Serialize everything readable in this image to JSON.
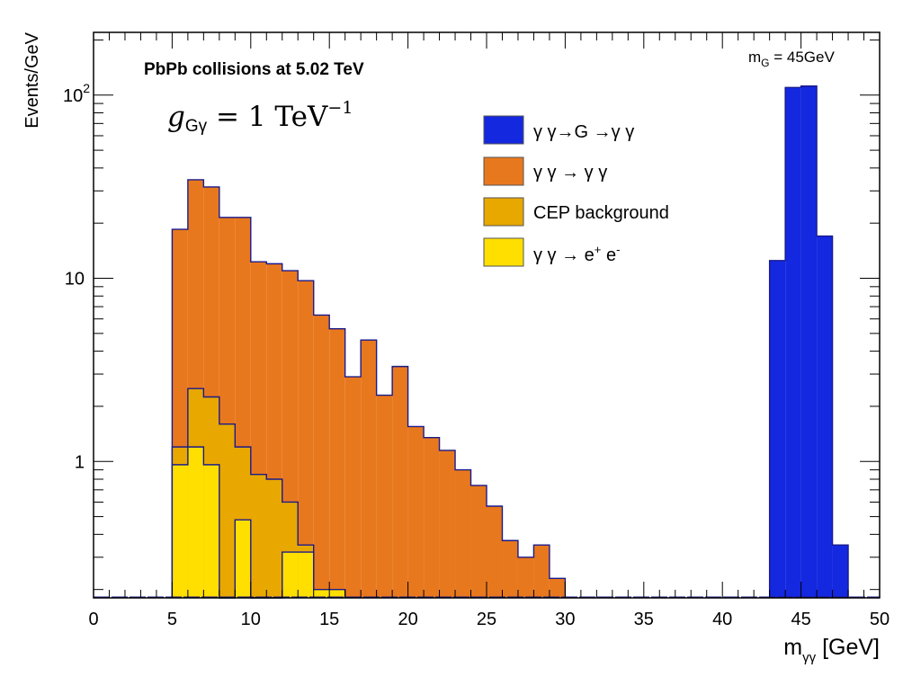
{
  "chart_data": {
    "type": "histogram",
    "title": "PbPb collisions at 5.02 TeV",
    "coupling_label": {
      "sym": "g",
      "sub": "Gγ",
      "rest": " = 1 TeV",
      "exp": "−1"
    },
    "mass_label": {
      "m": "m",
      "sub": "G",
      "rest": " = 45GeV"
    },
    "xlabel": {
      "m": "m",
      "sub": "γγ",
      "rest": " [GeV]"
    },
    "ylabel": "Events/GeV",
    "y_scale": "log",
    "xlim": [
      0,
      50
    ],
    "ylim": [
      0.18,
      220
    ],
    "bin_width": 1,
    "x_ticks": [
      "0",
      "5",
      "10",
      "15",
      "20",
      "25",
      "30",
      "35",
      "40",
      "45",
      "50"
    ],
    "y_ticks": [
      {
        "value": 1,
        "base": "1",
        "exp": ""
      },
      {
        "value": 10,
        "base": "10",
        "exp": ""
      },
      {
        "value": 100,
        "base": "10",
        "exp": "2"
      }
    ],
    "legend_position": "top-right",
    "series": [
      {
        "name": "γ γ→G →γ γ",
        "color": "#1428e0",
        "bin_starts": [
          43,
          44,
          45,
          46,
          47
        ],
        "values": [
          12.5,
          110,
          112,
          17,
          0.35
        ]
      },
      {
        "name": "γ γ  → γ γ",
        "color": "#e8781e",
        "bin_starts": [
          5,
          6,
          7,
          8,
          9,
          10,
          11,
          12,
          13,
          14,
          15,
          16,
          17,
          18,
          19,
          20,
          21,
          22,
          23,
          24,
          25,
          26,
          27,
          28,
          29
        ],
        "values": [
          18.5,
          34.5,
          31.5,
          21.5,
          21.5,
          12.3,
          12,
          11,
          9.7,
          6.3,
          5.3,
          2.9,
          4.6,
          2.3,
          3.3,
          1.55,
          1.35,
          1.15,
          0.9,
          0.74,
          0.57,
          0.37,
          0.3,
          0.35,
          0.23
        ]
      },
      {
        "name": "CEP background",
        "color": "#e8a800",
        "bin_starts": [
          5,
          6,
          7,
          8,
          9,
          10,
          11,
          12,
          13
        ],
        "values": [
          1.2,
          2.5,
          2.25,
          1.6,
          1.2,
          0.85,
          0.8,
          0.6,
          0.35
        ]
      },
      {
        "name": "γ γ  → e",
        "name_sup1": "+",
        "name_mid": " e",
        "name_sup2": "-",
        "color": "#ffdf00",
        "bin_starts": [
          5,
          6,
          7,
          8,
          9,
          10,
          11,
          12,
          13,
          14,
          15
        ],
        "values": [
          0.96,
          1.2,
          0.96,
          0,
          0.48,
          0,
          0,
          0.32,
          0.32,
          0.2,
          0.2
        ]
      }
    ]
  }
}
